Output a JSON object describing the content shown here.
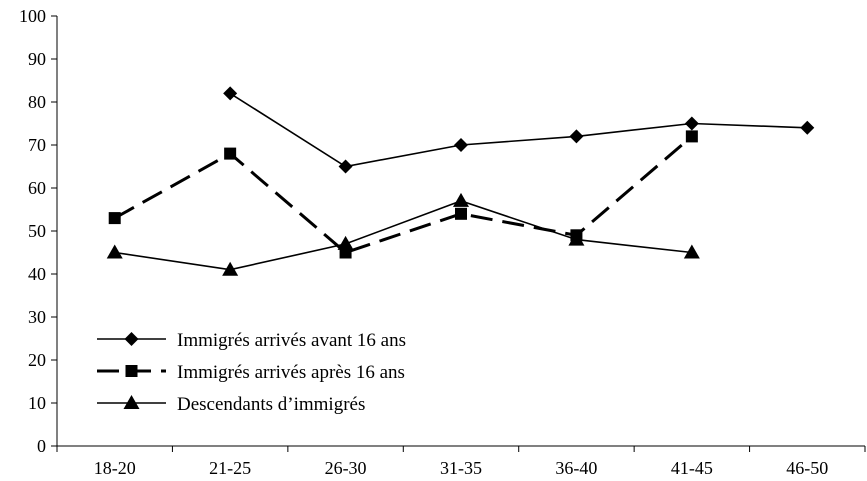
{
  "chart_data": {
    "type": "line",
    "title": "",
    "xlabel": "",
    "ylabel": "",
    "categories": [
      "18-20",
      "21-25",
      "26-30",
      "31-35",
      "36-40",
      "41-45",
      "46-50"
    ],
    "ylim": [
      0,
      100
    ],
    "yticks": [
      0,
      10,
      20,
      30,
      40,
      50,
      60,
      70,
      80,
      90,
      100
    ],
    "grid": false,
    "legend_position": "bottom-left",
    "series": [
      {
        "name": "Immigrés arrivés avant 16 ans",
        "values": [
          null,
          82,
          65,
          70,
          72,
          75,
          74
        ],
        "marker": "diamond",
        "line_style": "solid",
        "color": "#000000"
      },
      {
        "name": "Immigrés arrivés après 16 ans",
        "values": [
          53,
          68,
          45,
          54,
          49,
          72,
          null
        ],
        "marker": "square",
        "line_style": "dashed",
        "color": "#000000"
      },
      {
        "name": "Descendants d’immigrés",
        "values": [
          45,
          41,
          47,
          57,
          48,
          45,
          null
        ],
        "marker": "triangle",
        "line_style": "solid",
        "color": "#000000"
      }
    ]
  }
}
